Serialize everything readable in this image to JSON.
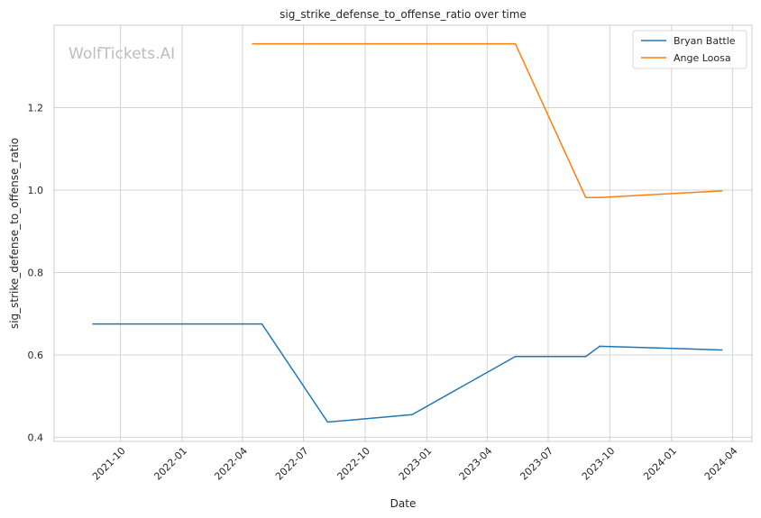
{
  "chart_data": {
    "type": "line",
    "title": "sig_strike_defense_to_offense_ratio over time",
    "xlabel": "Date",
    "ylabel": "sig_strike_defense_to_offense_ratio",
    "watermark": "WolfTickets.AI",
    "grid": true,
    "legend_position": "top-right",
    "xlim": [
      "2021-06-24",
      "2024-04-30"
    ],
    "ylim": [
      0.39,
      1.4
    ],
    "x_ticks": [
      "2021-10",
      "2022-01",
      "2022-04",
      "2022-07",
      "2022-10",
      "2023-01",
      "2023-04",
      "2023-07",
      "2023-10",
      "2024-01",
      "2024-04"
    ],
    "y_ticks": [
      0.4,
      0.6,
      0.8,
      1.0,
      1.2
    ],
    "y_tick_labels": [
      "0.4",
      "0.6",
      "0.8",
      "1.0",
      "1.2"
    ],
    "series": [
      {
        "name": "Bryan Battle",
        "color": "#1f77b4",
        "points": [
          {
            "x": "2021-08-21",
            "y": 0.675
          },
          {
            "x": "2022-04-30",
            "y": 0.675
          },
          {
            "x": "2022-08-06",
            "y": 0.437
          },
          {
            "x": "2022-12-10",
            "y": 0.455
          },
          {
            "x": "2023-05-13",
            "y": 0.596
          },
          {
            "x": "2023-08-26",
            "y": 0.596
          },
          {
            "x": "2023-09-16",
            "y": 0.621
          },
          {
            "x": "2024-03-16",
            "y": 0.612
          }
        ]
      },
      {
        "name": "Ange Loosa",
        "color": "#ff7f0e",
        "points": [
          {
            "x": "2022-04-16",
            "y": 1.355
          },
          {
            "x": "2023-05-13",
            "y": 1.355
          },
          {
            "x": "2023-08-26",
            "y": 0.982
          },
          {
            "x": "2023-09-16",
            "y": 0.982
          },
          {
            "x": "2024-03-16",
            "y": 0.998
          }
        ]
      }
    ]
  }
}
